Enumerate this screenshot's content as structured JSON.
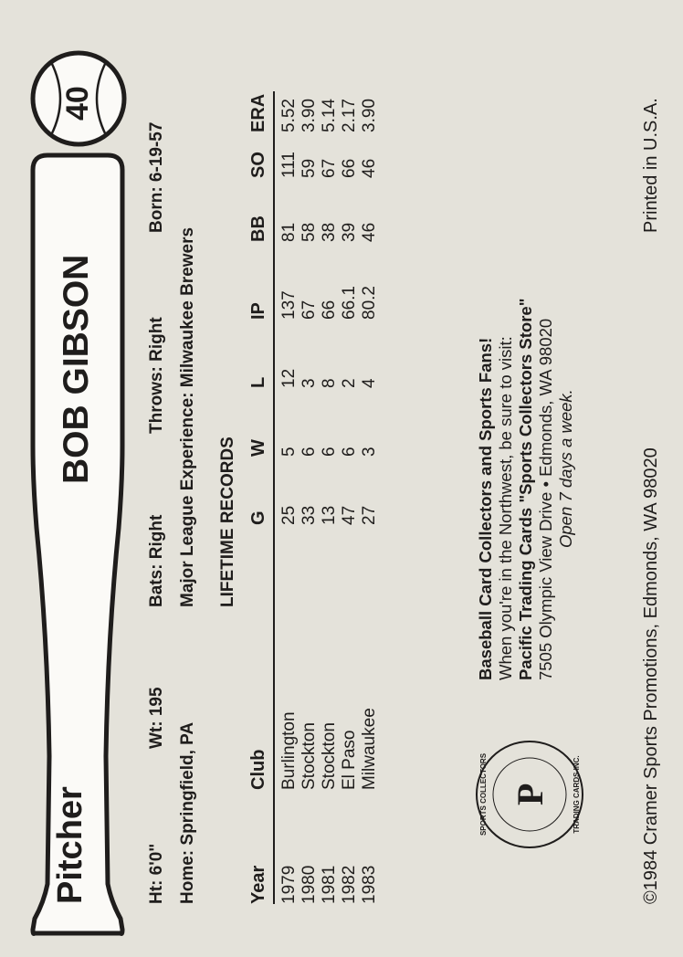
{
  "card": {
    "position": "Pitcher",
    "player_name": "BOB GIBSON",
    "number": "40",
    "bio": {
      "height": "Ht: 6'0\"",
      "weight": "Wt: 195",
      "bats": "Bats: Right",
      "throws": "Throws: Right",
      "born": "Born: 6-19-57",
      "home": "Home: Springfield, PA",
      "ml_experience": "Major League Experience: Milwaukee Brewers"
    },
    "records": {
      "title": "LIFETIME RECORDS",
      "columns": [
        "Year",
        "Club",
        "G",
        "W",
        "L",
        "IP",
        "BB",
        "SO",
        "ERA"
      ],
      "rows": [
        [
          "1979",
          "Burlington",
          "25",
          "5",
          "12",
          "137",
          "81",
          "111",
          "5.52"
        ],
        [
          "1980",
          "Stockton",
          "33",
          "6",
          "3",
          "67",
          "58",
          "59",
          "3.90"
        ],
        [
          "1981",
          "Stockton",
          "13",
          "6",
          "8",
          "66",
          "38",
          "67",
          "5.14"
        ],
        [
          "1982",
          "El Paso",
          "47",
          "6",
          "2",
          "66.1",
          "39",
          "66",
          "2.17"
        ],
        [
          "1983",
          "Milwaukee",
          "27",
          "3",
          "4",
          "80.2",
          "46",
          "46",
          "3.90"
        ]
      ]
    },
    "ad": {
      "headline": "Baseball Card Collectors and Sports Fans!",
      "line1": "When you're in the Northwest, be sure to visit:",
      "line2": "Pacific Trading Cards \"Sports Collectors Store\"",
      "line3": "7505 Olympic View Drive • Edmonds, WA 98020",
      "line4": "Open 7 days a week.",
      "logo_text": "SPORTS COLLECTORS STORE • PACIFIC TRADING CARDS INC."
    },
    "footer": {
      "copyright": "©1984 Cramer Sports Promotions, Edmonds, WA 98020",
      "printed": "Printed in U.S.A."
    },
    "colors": {
      "background": "#e4e2da",
      "ink": "#1f1d1c"
    }
  }
}
